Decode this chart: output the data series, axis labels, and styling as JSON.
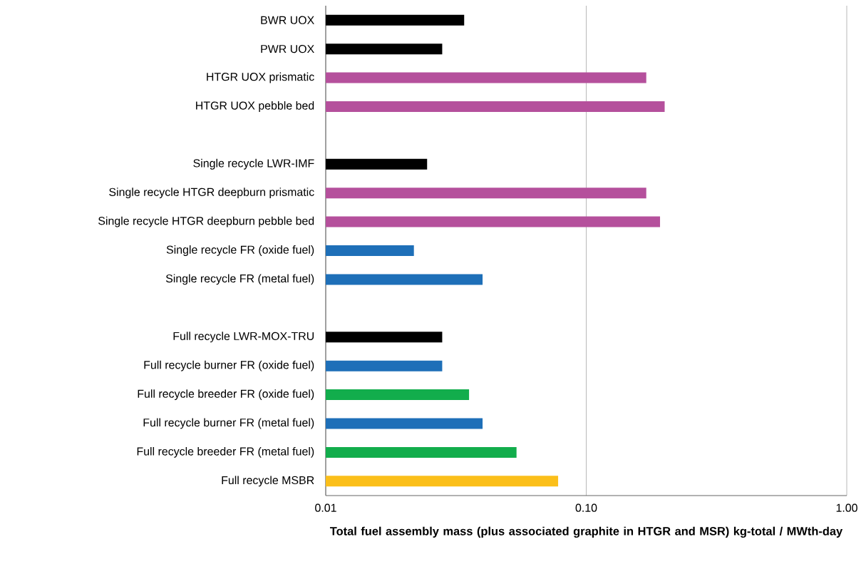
{
  "chart_data": {
    "type": "bar",
    "orientation": "horizontal",
    "categories": [
      "BWR UOX",
      "PWR UOX",
      "HTGR UOX prismatic",
      "HTGR UOX pebble bed",
      null,
      "Single recycle LWR-IMF",
      "Single recycle HTGR deepburn prismatic",
      "Single recycle HTGR deepburn pebble bed",
      "Single recycle FR (oxide fuel)",
      "Single recycle FR (metal fuel)",
      null,
      "Full recycle LWR-MOX-TRU",
      "Full recycle burner FR (oxide fuel)",
      "Full recycle breeder FR (oxide fuel)",
      "Full recycle burner FR (metal fuel)",
      "Full recycle breeder FR (metal fuel)",
      "Full recycle MSBR"
    ],
    "values": [
      0.034,
      0.028,
      0.17,
      0.2,
      null,
      0.0245,
      0.17,
      0.192,
      0.0218,
      0.04,
      null,
      0.028,
      0.028,
      0.0355,
      0.04,
      0.054,
      0.078
    ],
    "colors": [
      "#000000",
      "#000000",
      "#b5509c",
      "#b5509c",
      null,
      "#000000",
      "#b5509c",
      "#b5509c",
      "#1e6fb8",
      "#1e6fb8",
      null,
      "#000000",
      "#1e6fb8",
      "#12ad4c",
      "#1e6fb8",
      "#12ad4c",
      "#fbbf1a"
    ],
    "xlabel": "Total fuel assembly mass (plus associated graphite in HTGR and MSR) kg-total / MWth-day",
    "xlim": [
      0.01,
      1.0
    ],
    "xticks": [
      0.01,
      {
        "value": 0.1,
        "label": "0.10"
      },
      {
        "value": 1.0,
        "label": "1.00"
      }
    ],
    "log": "x",
    "grid": "x"
  }
}
